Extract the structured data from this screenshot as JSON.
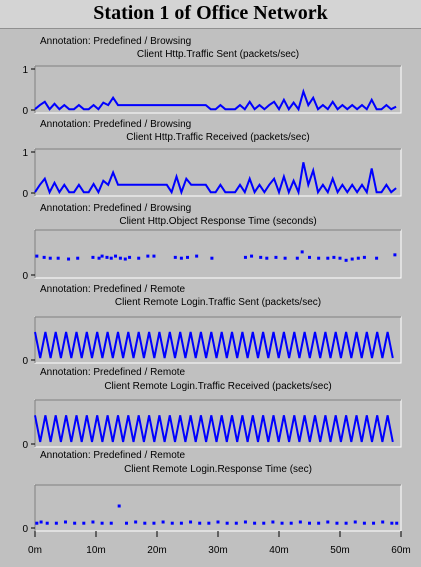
{
  "title": "Station 1 of Office Network",
  "colors": {
    "series": "#0000ff",
    "background": "#c0c0c0",
    "plot_bg": "#c0c0c0",
    "frame": "#808080"
  },
  "x_tick_labels": [
    "0m",
    "10m",
    "20m",
    "30m",
    "40m",
    "50m",
    "60m"
  ],
  "chart_data": [
    {
      "type": "line",
      "annotation": "Annotation: Predefined / Browsing",
      "title": "Client Http.Traffic Sent (packets/sec)",
      "ylim": [
        0,
        1
      ],
      "y_ticks": [
        0,
        1
      ],
      "y_tick_labels": [
        "0",
        "1"
      ],
      "xlim": [
        0,
        60
      ],
      "x": [
        0,
        0.8,
        1.6,
        2.4,
        3.2,
        4,
        4.8,
        5.6,
        6.4,
        7.2,
        8,
        8.8,
        9.6,
        10.4,
        11.2,
        12,
        12.8,
        13.6,
        14.4,
        15.2,
        16,
        16.8,
        17.6,
        18.4,
        19.2,
        20,
        20.8,
        21.6,
        22.4,
        23.2,
        24,
        24.8,
        25.6,
        26.4,
        27.2,
        28,
        28.8,
        29.6,
        30.4,
        31.2,
        32,
        32.8,
        33.6,
        34.4,
        35.2,
        36,
        36.8,
        37.6,
        38.4,
        39.2,
        40,
        40.8,
        41.6,
        42.4,
        43.2,
        44,
        44.8,
        45.6,
        46.4,
        47.2,
        48,
        48.8,
        49.6,
        50.4,
        51.2,
        52,
        52.8,
        53.6,
        54.4,
        55.2,
        56,
        56.8,
        57.6,
        58.4,
        59.2
      ],
      "y": [
        0.02,
        0.12,
        0.2,
        0.02,
        0.15,
        0.02,
        0.12,
        0.02,
        0.02,
        0.12,
        0.02,
        0.02,
        0.12,
        0.02,
        0.18,
        0.12,
        0.3,
        0.12,
        0.12,
        0.12,
        0.12,
        0.12,
        0.12,
        0.12,
        0.12,
        0.12,
        0.12,
        0.12,
        0.12,
        0.12,
        0.12,
        0.12,
        0.12,
        0.12,
        0.12,
        0.12,
        0.02,
        0.02,
        0.02,
        0.02,
        0.02,
        0.02,
        0.02,
        0.02,
        0.02,
        0.02,
        0.02,
        0.02,
        0.02,
        0.02,
        0.02,
        0.02,
        0.02,
        0.02,
        0.02,
        0.02,
        0.02,
        0.02,
        0.02,
        0.02,
        0.02,
        0.02,
        0.02,
        0.02,
        0.02,
        0.02,
        0.02,
        0.02,
        0.02,
        0.02,
        0.02,
        0.02,
        0.02,
        0.02,
        0.02
      ],
      "overrides": [
        [
          38.4,
          0.12
        ],
        [
          39.2,
          0.2
        ],
        [
          40,
          0.02
        ],
        [
          40.8,
          0.25
        ],
        [
          41.6,
          0.02
        ],
        [
          42.4,
          0.18
        ],
        [
          43.2,
          0.02
        ],
        [
          44,
          0.45
        ],
        [
          44.8,
          0.12
        ],
        [
          45.6,
          0.3
        ],
        [
          46.4,
          0.02
        ],
        [
          47.2,
          0.12
        ],
        [
          48,
          0.02
        ],
        [
          48.8,
          0.2
        ],
        [
          49.6,
          0.02
        ],
        [
          50.4,
          0.12
        ],
        [
          51.2,
          0.02
        ],
        [
          52,
          0.12
        ],
        [
          52.8,
          0.02
        ],
        [
          53.6,
          0.12
        ],
        [
          54.4,
          0.02
        ],
        [
          55.2,
          0.25
        ],
        [
          56,
          0.02
        ],
        [
          56.8,
          0.02
        ],
        [
          57.6,
          0.12
        ],
        [
          58.4,
          0.02
        ],
        [
          59.2,
          0.08
        ],
        [
          33.6,
          0.12
        ],
        [
          34.4,
          0.02
        ],
        [
          35.2,
          0.2
        ],
        [
          36,
          0.02
        ],
        [
          36.8,
          0.12
        ],
        [
          37.6,
          0.02
        ],
        [
          30.4,
          0.12
        ],
        [
          31.2,
          0.02
        ]
      ]
    },
    {
      "type": "line",
      "annotation": "Annotation: Predefined / Browsing",
      "title": "Client Http.Traffic Received (packets/sec)",
      "ylim": [
        0,
        1
      ],
      "y_ticks": [
        0,
        1
      ],
      "y_tick_labels": [
        "0",
        "1"
      ],
      "xlim": [
        0,
        60
      ],
      "x": [
        0,
        0.8,
        1.6,
        2.4,
        3.2,
        4,
        4.8,
        5.6,
        6.4,
        7.2,
        8,
        8.8,
        9.6,
        10.4,
        11.2,
        12,
        12.8,
        13.6,
        14.4,
        15.2,
        16,
        16.8,
        17.6,
        18.4,
        19.2,
        20,
        20.8,
        21.6,
        22.4,
        23.2,
        24,
        24.8,
        25.6,
        26.4,
        27.2,
        28,
        28.8,
        29.6,
        30.4,
        31.2,
        32,
        32.8,
        33.6,
        34.4,
        35.2,
        36,
        36.8,
        37.6,
        38.4,
        39.2,
        40,
        40.8,
        41.6,
        42.4,
        43.2,
        44,
        44.8,
        45.6,
        46.4,
        47.2,
        48,
        48.8,
        49.6,
        50.4,
        51.2,
        52,
        52.8,
        53.6,
        54.4,
        55.2,
        56,
        56.8,
        57.6,
        58.4,
        59.2
      ],
      "y": [
        0.02,
        0.2,
        0.35,
        0.02,
        0.25,
        0.02,
        0.2,
        0.02,
        0.02,
        0.2,
        0.02,
        0.02,
        0.22,
        0.02,
        0.3,
        0.2,
        0.5,
        0.2,
        0.2,
        0.2,
        0.2,
        0.2,
        0.2,
        0.2,
        0.2,
        0.2,
        0.2,
        0.2,
        0.2,
        0.2,
        0.2,
        0.2,
        0.2,
        0.2,
        0.2,
        0.2,
        0.02,
        0.02,
        0.02,
        0.02,
        0.02,
        0.02,
        0.02,
        0.02,
        0.02,
        0.02,
        0.02,
        0.02,
        0.02,
        0.02,
        0.02,
        0.02,
        0.02,
        0.02,
        0.02,
        0.02,
        0.02,
        0.02,
        0.02,
        0.02,
        0.02,
        0.02,
        0.02,
        0.02,
        0.02,
        0.02,
        0.02,
        0.02,
        0.02,
        0.02,
        0.02,
        0.02,
        0.02,
        0.02,
        0.02
      ],
      "overrides": [
        [
          22.4,
          0.02
        ],
        [
          23.2,
          0.4
        ],
        [
          24,
          0.02
        ],
        [
          24.8,
          0.35
        ],
        [
          25.6,
          0.2
        ],
        [
          26.4,
          0.2
        ],
        [
          27.2,
          0.2
        ],
        [
          38.4,
          0.2
        ],
        [
          39.2,
          0.35
        ],
        [
          40,
          0.02
        ],
        [
          40.8,
          0.4
        ],
        [
          41.6,
          0.02
        ],
        [
          42.4,
          0.3
        ],
        [
          43.2,
          0.02
        ],
        [
          44,
          0.75
        ],
        [
          44.8,
          0.2
        ],
        [
          45.6,
          0.55
        ],
        [
          46.4,
          0.02
        ],
        [
          47.2,
          0.2
        ],
        [
          48,
          0.02
        ],
        [
          48.8,
          0.35
        ],
        [
          49.6,
          0.02
        ],
        [
          50.4,
          0.2
        ],
        [
          51.2,
          0.02
        ],
        [
          52,
          0.2
        ],
        [
          52.8,
          0.02
        ],
        [
          53.6,
          0.2
        ],
        [
          54.4,
          0.02
        ],
        [
          55.2,
          0.6
        ],
        [
          56,
          0.02
        ],
        [
          56.8,
          0.02
        ],
        [
          57.6,
          0.2
        ],
        [
          58.4,
          0.02
        ],
        [
          59.2,
          0.12
        ],
        [
          33.6,
          0.2
        ],
        [
          34.4,
          0.02
        ],
        [
          35.2,
          0.35
        ],
        [
          36,
          0.02
        ],
        [
          36.8,
          0.2
        ],
        [
          37.6,
          0.02
        ],
        [
          30.4,
          0.2
        ],
        [
          31.2,
          0.02
        ]
      ]
    },
    {
      "type": "scatter",
      "annotation": "Annotation: Predefined / Browsing",
      "title": "Client Http.Object Response Time (seconds)",
      "ylim": [
        0,
        1
      ],
      "y_ticks": [
        0
      ],
      "y_tick_labels": [
        "0"
      ],
      "xlim": [
        0,
        60
      ],
      "x": [
        0.3,
        1.5,
        2.5,
        3.8,
        5.5,
        7,
        9.5,
        10.5,
        11,
        11.8,
        12.5,
        13.2,
        14,
        14.8,
        15.5,
        17,
        18.5,
        19.5,
        23,
        24,
        25,
        26.5,
        29,
        34.5,
        35.5,
        37,
        38,
        39.5,
        41,
        43,
        43.8,
        45,
        46.5,
        48,
        49,
        50,
        51,
        52,
        53,
        54,
        56,
        59
      ],
      "y": [
        0.45,
        0.42,
        0.4,
        0.4,
        0.38,
        0.4,
        0.42,
        0.4,
        0.45,
        0.42,
        0.4,
        0.45,
        0.4,
        0.38,
        0.42,
        0.4,
        0.45,
        0.45,
        0.42,
        0.4,
        0.42,
        0.45,
        0.4,
        0.42,
        0.45,
        0.42,
        0.4,
        0.42,
        0.4,
        0.4,
        0.55,
        0.42,
        0.4,
        0.4,
        0.42,
        0.4,
        0.35,
        0.38,
        0.4,
        0.42,
        0.4,
        0.48
      ]
    },
    {
      "type": "line",
      "annotation": "Annotation: Predefined / Remote",
      "title": "Client Remote Login.Traffic Sent (packets/sec)",
      "ylim": [
        0,
        1
      ],
      "y_ticks": [
        0
      ],
      "y_tick_labels": [
        "0"
      ],
      "xlim": [
        0,
        60
      ],
      "pattern": "zigzag",
      "period_min": 1.7,
      "high": 0.7,
      "low": 0.05
    },
    {
      "type": "line",
      "annotation": "Annotation: Predefined / Remote",
      "title": "Client Remote Login.Traffic Received (packets/sec)",
      "ylim": [
        0,
        1
      ],
      "y_ticks": [
        0
      ],
      "y_tick_labels": [
        "0"
      ],
      "xlim": [
        0,
        60
      ],
      "pattern": "zigzag",
      "period_min": 1.7,
      "high": 0.7,
      "low": 0.05
    },
    {
      "type": "scatter",
      "annotation": "Annotation: Predefined / Remote",
      "title": "Client Remote Login.Response Time (sec)",
      "ylim": [
        0,
        1
      ],
      "y_ticks": [
        0
      ],
      "y_tick_labels": [
        "0"
      ],
      "xlim": [
        0,
        60
      ],
      "x": [
        0.3,
        1,
        2,
        3.5,
        5,
        6.5,
        8,
        9.5,
        11,
        12.5,
        13.8,
        15,
        16.5,
        18,
        19.5,
        21,
        22.5,
        24,
        25.5,
        27,
        28.5,
        30,
        31.5,
        33,
        34.5,
        36,
        37.5,
        39,
        40.5,
        42,
        43.5,
        45,
        46.5,
        48,
        49.5,
        51,
        52.5,
        54,
        55.5,
        57,
        58.5,
        59.3
      ],
      "y": [
        0.12,
        0.15,
        0.12,
        0.12,
        0.15,
        0.12,
        0.12,
        0.15,
        0.12,
        0.12,
        0.55,
        0.12,
        0.15,
        0.12,
        0.12,
        0.15,
        0.12,
        0.12,
        0.15,
        0.12,
        0.12,
        0.15,
        0.12,
        0.12,
        0.15,
        0.12,
        0.12,
        0.15,
        0.12,
        0.12,
        0.15,
        0.12,
        0.12,
        0.15,
        0.12,
        0.12,
        0.15,
        0.12,
        0.12,
        0.15,
        0.12,
        0.12
      ]
    }
  ]
}
